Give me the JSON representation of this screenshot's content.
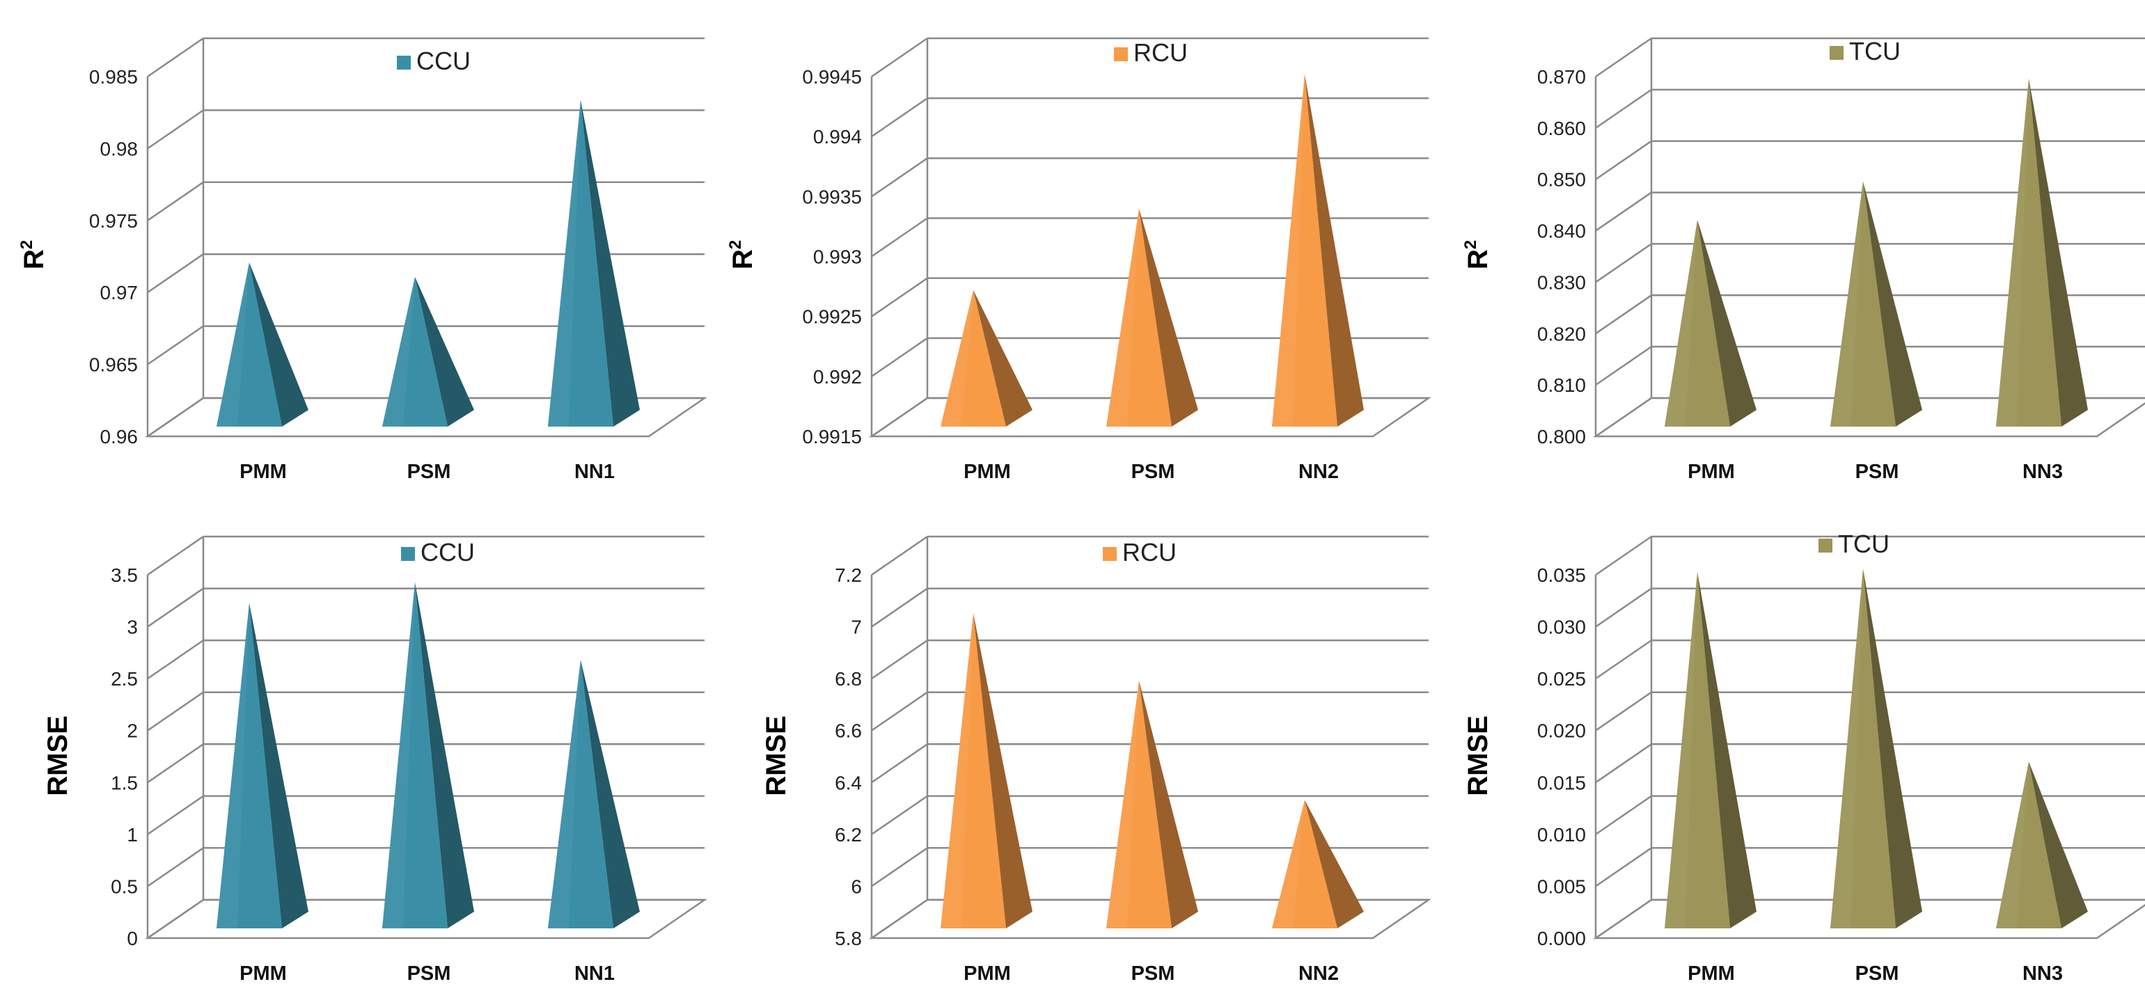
{
  "chart_data": [
    {
      "type": "bar",
      "shape": "3d-pyramid",
      "ylabel": "R",
      "ylabel_superscript": "2",
      "legend": "CCU",
      "color": "#3A8FA6",
      "categories": [
        "PMM",
        "PSM",
        "NN1"
      ],
      "values": [
        0.9715,
        0.9705,
        0.9828
      ],
      "ylim": [
        0.96,
        0.985
      ],
      "ticks": [
        "0.96",
        "0.965",
        "0.97",
        "0.975",
        "0.98",
        "0.985"
      ],
      "grid": true
    },
    {
      "type": "bar",
      "shape": "3d-pyramid",
      "ylabel": "R",
      "ylabel_superscript": "2",
      "legend": "RCU",
      "color": "#F79B47",
      "categories": [
        "PMM",
        "PSM",
        "NN2"
      ],
      "values": [
        0.99265,
        0.99333,
        0.99445
      ],
      "ylim": [
        0.9915,
        0.9945
      ],
      "ticks": [
        "0.9915",
        "0.992",
        "0.9925",
        "0.993",
        "0.9935",
        "0.994",
        "0.9945"
      ],
      "grid": true
    },
    {
      "type": "bar",
      "shape": "3d-pyramid",
      "ylabel": "R",
      "ylabel_superscript": "2",
      "legend": "TCU",
      "color": "#9C9459",
      "categories": [
        "PMM",
        "PSM",
        "NN3"
      ],
      "values": [
        0.8405,
        0.848,
        0.868
      ],
      "ylim": [
        0.8,
        0.87
      ],
      "ticks": [
        "0.800",
        "0.810",
        "0.820",
        "0.830",
        "0.840",
        "0.850",
        "0.860",
        "0.870"
      ],
      "grid": true
    },
    {
      "type": "bar",
      "shape": "3d-pyramid",
      "ylabel": "RMSE",
      "legend": "CCU",
      "color": "#3A8FA6",
      "categories": [
        "PMM",
        "PSM",
        "NN1"
      ],
      "values": [
        3.15,
        3.35,
        2.6
      ],
      "ylim": [
        0,
        3.5
      ],
      "ticks": [
        "0",
        "0.5",
        "1",
        "1.5",
        "2",
        "2.5",
        "3",
        "3.5"
      ],
      "grid": true
    },
    {
      "type": "bar",
      "shape": "3d-pyramid",
      "ylabel": "RMSE",
      "legend": "RCU",
      "color": "#F79B47",
      "categories": [
        "PMM",
        "PSM",
        "NN2"
      ],
      "values": [
        7.02,
        6.76,
        6.3
      ],
      "ylim": [
        5.8,
        7.2
      ],
      "ticks": [
        "5.8",
        "6",
        "6.2",
        "6.4",
        "6.6",
        "6.8",
        "7",
        "7.2"
      ],
      "grid": true
    },
    {
      "type": "bar",
      "shape": "3d-pyramid",
      "ylabel": "RMSE",
      "legend": "TCU",
      "color": "#9C9459",
      "categories": [
        "PMM",
        "PSM",
        "NN3"
      ],
      "values": [
        0.0345,
        0.0348,
        0.0162
      ],
      "ylim": [
        0,
        0.035
      ],
      "ticks": [
        "0.000",
        "0.005",
        "0.010",
        "0.015",
        "0.020",
        "0.025",
        "0.030",
        "0.035"
      ],
      "grid": true
    }
  ]
}
